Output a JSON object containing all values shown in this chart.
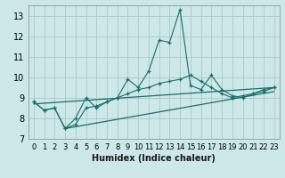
{
  "title": "",
  "xlabel": "Humidex (Indice chaleur)",
  "bg_color": "#cce8e8",
  "grid_color": "#b0cccc",
  "line_color": "#1a6e6a",
  "xlim": [
    -0.5,
    23.5
  ],
  "ylim": [
    7,
    13.5
  ],
  "yticks": [
    7,
    8,
    9,
    10,
    11,
    12,
    13
  ],
  "xticks": [
    0,
    1,
    2,
    3,
    4,
    5,
    6,
    7,
    8,
    9,
    10,
    11,
    12,
    13,
    14,
    15,
    16,
    17,
    18,
    19,
    20,
    21,
    22,
    23
  ],
  "series1_x": [
    0,
    1,
    2,
    3,
    4,
    5,
    6,
    7,
    8,
    9,
    10,
    11,
    12,
    13,
    14,
    15,
    16,
    17,
    18,
    19,
    20,
    21,
    22,
    23
  ],
  "series1_y": [
    8.8,
    8.4,
    8.5,
    7.5,
    7.7,
    8.5,
    8.6,
    8.8,
    9.0,
    9.9,
    9.5,
    10.3,
    11.8,
    11.7,
    13.3,
    9.6,
    9.4,
    10.1,
    9.4,
    9.1,
    9.0,
    9.2,
    9.4,
    9.5
  ],
  "series2_x": [
    0,
    1,
    2,
    3,
    4,
    5,
    6,
    7,
    8,
    9,
    10,
    11,
    12,
    13,
    14,
    15,
    16,
    17,
    18,
    19,
    20,
    21,
    22,
    23
  ],
  "series2_y": [
    8.8,
    8.4,
    8.5,
    7.5,
    8.0,
    9.0,
    8.5,
    8.8,
    9.0,
    9.2,
    9.4,
    9.5,
    9.7,
    9.8,
    9.9,
    10.1,
    9.8,
    9.5,
    9.2,
    9.0,
    9.1,
    9.2,
    9.3,
    9.5
  ],
  "series3_x": [
    0,
    23
  ],
  "series3_y": [
    8.7,
    9.5
  ],
  "series4_x": [
    3,
    23
  ],
  "series4_y": [
    7.5,
    9.3
  ]
}
